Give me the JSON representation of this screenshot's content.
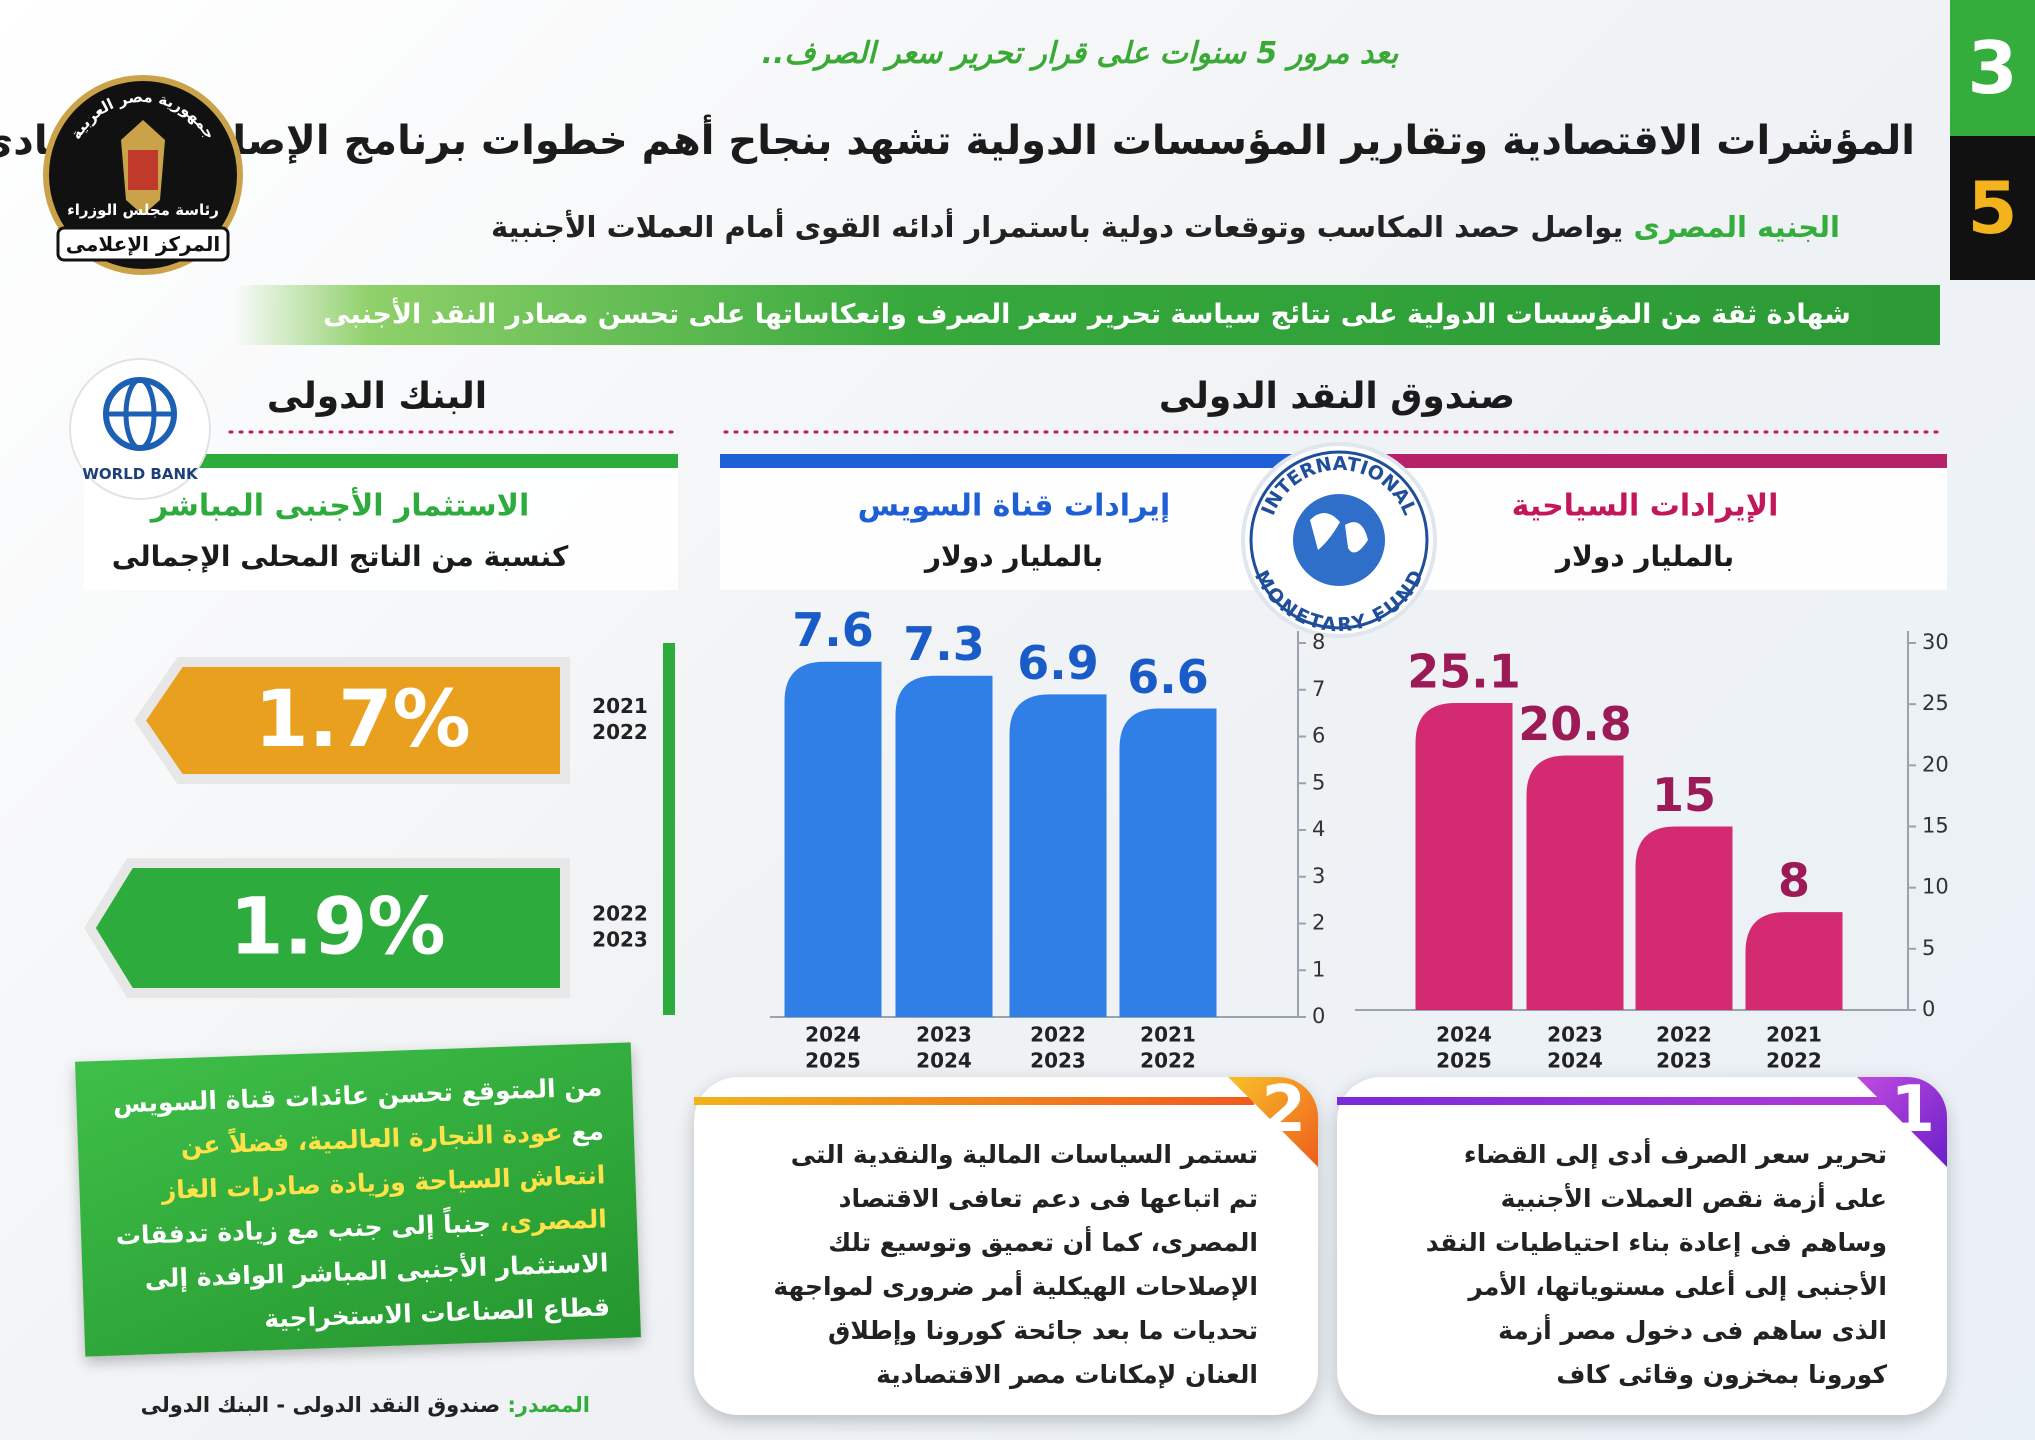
{
  "header": {
    "badge_top": "3",
    "badge_bottom": "5",
    "kicker": "بعد مرور 5 سنوات على قرار تحرير سعر الصرف..",
    "title": "المؤشرات الاقتصادية وتقارير المؤسسات الدولية تشهد بنجاح أهم خطوات برنامج الإصلاح الاقتصادى",
    "subtitle_highlight": "الجنيه المصرى",
    "subtitle": "يواصل حصد المكاسب وتوقعات دولية باستمرار أدائه القوى أمام العملات الأجنبية",
    "banner": "شهادة ثقة من المؤسسات الدولية على نتائج سياسة تحرير سعر الصرف وانعكاساتها على تحسن مصادر النقد الأجنبى"
  },
  "logo": {
    "top": "جمهورية مصر العربية",
    "middle": "رئاسة مجلس الوزراء",
    "bottom": "المركز الإعلامى"
  },
  "sections": {
    "imf": "صندوق النقد الدولى",
    "imf_logo_top": "INTERNATIONAL",
    "imf_logo_bottom": "MONETARY FUND",
    "world_bank": "البنك الدولى",
    "world_bank_logo": "WORLD BANK"
  },
  "chart_data": [
    {
      "type": "bar",
      "title": "الإيرادات السياحية",
      "subtitle": "بالمليار دولار",
      "categories": [
        [
          "2024",
          "2025"
        ],
        [
          "2023",
          "2024"
        ],
        [
          "2022",
          "2023"
        ],
        [
          "2021",
          "2022"
        ]
      ],
      "values": [
        25.1,
        20.8,
        15,
        8
      ],
      "color": "#d42a72",
      "ylim": [
        0,
        30
      ],
      "yticks": [
        0,
        5,
        10,
        15,
        20,
        25,
        30
      ]
    },
    {
      "type": "bar",
      "title": "إيرادات قناة السويس",
      "subtitle": "بالمليار دولار",
      "categories": [
        [
          "2024",
          "2025"
        ],
        [
          "2023",
          "2024"
        ],
        [
          "2022",
          "2023"
        ],
        [
          "2021",
          "2022"
        ]
      ],
      "values": [
        7.6,
        7.3,
        6.9,
        6.6
      ],
      "color": "#2f7fe6",
      "ylim": [
        0,
        8
      ],
      "yticks": [
        0,
        1,
        2,
        3,
        4,
        5,
        6,
        7,
        8
      ]
    },
    {
      "type": "arrow",
      "title": "الاستثمار الأجنبى المباشر",
      "subtitle": "كنسبة من الناتج المحلى الإجمالى",
      "categories": [
        [
          "2021",
          "2022"
        ],
        [
          "2022",
          "2023"
        ]
      ],
      "values": [
        1.7,
        1.9
      ],
      "value_labels": [
        "1.7%",
        "1.9%"
      ],
      "colors": [
        "#e9a01f",
        "#2eab3d"
      ]
    }
  ],
  "notes": [
    {
      "number": "1",
      "text": "تحرير سعر الصرف أدى إلى القضاء على أزمة نقص العملات الأجنبية وساهم فى إعادة بناء احتياطيات النقد الأجنبى إلى أعلى مستوياتها، الأمر الذى ساهم فى دخول مصر أزمة كورونا بمخزون وقائى كاف"
    },
    {
      "number": "2",
      "text": "تستمر السياسات المالية والنقدية التى تم اتباعها فى دعم تعافى الاقتصاد المصرى، كما أن تعميق وتوسيع تلك الإصلاحات الهيكلية أمر ضرورى لمواجهة تحديات ما بعد جائحة كورونا وإطلاق العنان لإمكانات مصر الاقتصادية"
    }
  ],
  "outlook": {
    "segments": [
      {
        "text": "من المتوقع تحسن عائدات قناة السويس مع ",
        "highlight": false
      },
      {
        "text": "عودة التجارة العالمية،",
        "highlight": true
      },
      {
        "text": " فضلاً عن انتعاش السياحة وزيادة صادرات الغاز المصرى،",
        "highlight": true
      },
      {
        "text": " جنباً إلى جنب مع زيادة تدفقات الاستثمار الأجنبى المباشر الوافدة إلى قطاع الصناعات الاستخراجية",
        "highlight": false
      }
    ]
  },
  "source": {
    "label": "المصدر:",
    "text": "صندوق النقد الدولى - البنك الدولى"
  }
}
